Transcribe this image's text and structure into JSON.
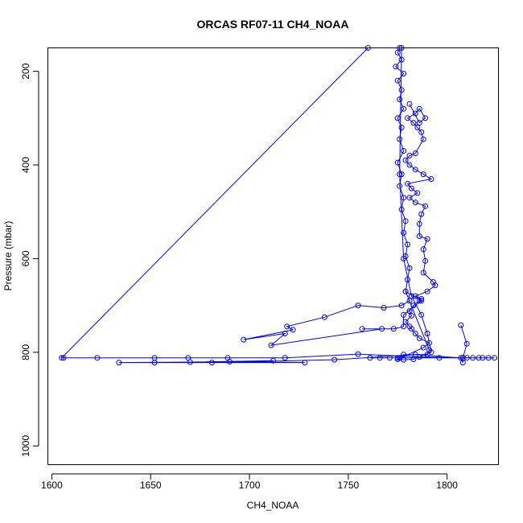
{
  "chart_data": {
    "type": "line",
    "title": "ORCAS RF07-11 CH4_NOAA",
    "xlabel": "CH4_NOAA",
    "ylabel": "Pressure (mbar)",
    "xlim": [
      1598,
      1826
    ],
    "ylim": [
      1040,
      150
    ],
    "y_reversed": true,
    "xticks": [
      1600,
      1650,
      1700,
      1750,
      1800
    ],
    "yticks": [
      200,
      400,
      600,
      800,
      1000
    ],
    "grid": false,
    "legend": "none",
    "series_color": "#0000ff",
    "series": [
      {
        "values": [
          [
            1776,
            150
          ],
          [
            1775,
            160
          ],
          [
            1777,
            175
          ],
          [
            1774,
            190
          ],
          [
            1778,
            205
          ],
          [
            1775,
            220
          ],
          [
            1777,
            240
          ],
          [
            1776,
            260
          ],
          [
            1778,
            280
          ],
          [
            1775,
            300
          ],
          [
            1777,
            320
          ],
          [
            1776,
            345
          ],
          [
            1778,
            370
          ],
          [
            1775,
            395
          ],
          [
            1777,
            420
          ],
          [
            1776,
            445
          ],
          [
            1778,
            470
          ],
          [
            1777,
            495
          ],
          [
            1779,
            520
          ],
          [
            1778,
            545
          ],
          [
            1780,
            570
          ],
          [
            1779,
            595
          ],
          [
            1781,
            620
          ],
          [
            1780,
            645
          ],
          [
            1779,
            670
          ],
          [
            1781,
            690
          ],
          [
            1777,
            700
          ],
          [
            1768,
            705
          ],
          [
            1755,
            700
          ],
          [
            1738,
            725
          ],
          [
            1719,
            745
          ],
          [
            1722,
            752
          ],
          [
            1697,
            773
          ],
          [
            1718,
            760
          ],
          [
            1711,
            785
          ],
          [
            1767,
            750
          ],
          [
            1757,
            750
          ],
          [
            1773,
            750
          ],
          [
            1778,
            745
          ],
          [
            1778,
            720
          ],
          [
            1787,
            690
          ],
          [
            1779,
            670
          ],
          [
            1791,
            795
          ],
          [
            1790,
            805
          ],
          [
            1778,
            805
          ],
          [
            1776,
            812
          ],
          [
            1771,
            812
          ],
          [
            1766,
            812
          ],
          [
            1761,
            812
          ],
          [
            1775,
            812
          ],
          [
            1796,
            812
          ],
          [
            1808,
            812
          ],
          [
            1810,
            812
          ],
          [
            1816,
            812
          ],
          [
            1818,
            812
          ],
          [
            1821,
            812
          ],
          [
            1824,
            812
          ],
          [
            1813,
            812
          ],
          [
            1786,
            810
          ],
          [
            1755,
            804
          ],
          [
            1718,
            812
          ],
          [
            1689,
            812
          ],
          [
            1669,
            812
          ],
          [
            1652,
            812
          ],
          [
            1623,
            812
          ],
          [
            1606,
            812
          ],
          [
            1605,
            812
          ],
          [
            1760,
            150
          ]
        ]
      },
      {
        "values": [
          [
            1777,
            150
          ],
          [
            1776,
            420
          ],
          [
            1778,
            600
          ],
          [
            1782,
            680
          ],
          [
            1787,
            720
          ],
          [
            1790,
            760
          ],
          [
            1792,
            800
          ],
          [
            1783,
            815
          ],
          [
            1778,
            816
          ],
          [
            1775,
            815
          ],
          [
            1788,
            790
          ],
          [
            1791,
            780
          ],
          [
            1786,
            770
          ],
          [
            1784,
            760
          ],
          [
            1782,
            750
          ],
          [
            1781,
            745
          ],
          [
            1779,
            735
          ],
          [
            1782,
            722
          ],
          [
            1781,
            712
          ],
          [
            1783,
            700
          ],
          [
            1786,
            690
          ],
          [
            1787,
            686
          ],
          [
            1784,
            680
          ],
          [
            1790,
            670
          ],
          [
            1794,
            657
          ],
          [
            1793,
            650
          ],
          [
            1788,
            630
          ],
          [
            1789,
            605
          ],
          [
            1788,
            580
          ],
          [
            1790,
            558
          ],
          [
            1786,
            552
          ],
          [
            1786,
            526
          ],
          [
            1787,
            505
          ],
          [
            1789,
            488
          ],
          [
            1784,
            480
          ],
          [
            1781,
            470
          ],
          [
            1785,
            460
          ],
          [
            1782,
            450
          ],
          [
            1780,
            440
          ],
          [
            1792,
            430
          ],
          [
            1788,
            420
          ],
          [
            1784,
            410
          ],
          [
            1781,
            400
          ],
          [
            1779,
            390
          ],
          [
            1781,
            380
          ],
          [
            1784,
            375
          ],
          [
            1788,
            345
          ],
          [
            1787,
            330
          ],
          [
            1785,
            320
          ],
          [
            1783,
            310
          ],
          [
            1780,
            300
          ],
          [
            1784,
            290
          ],
          [
            1786,
            280
          ],
          [
            1789,
            300
          ],
          [
            1786,
            310
          ],
          [
            1781,
            270
          ]
        ]
      },
      {
        "values": [
          [
            1807,
            742
          ],
          [
            1810,
            782
          ],
          [
            1808,
            812
          ],
          [
            1808,
            822
          ],
          [
            1807,
            812
          ],
          [
            1784,
            805
          ],
          [
            1743,
            816
          ],
          [
            1681,
            822
          ],
          [
            1690,
            820
          ],
          [
            1728,
            822
          ],
          [
            1652,
            822
          ],
          [
            1634,
            822
          ],
          [
            1670,
            821
          ],
          [
            1712,
            818
          ]
        ]
      }
    ]
  }
}
